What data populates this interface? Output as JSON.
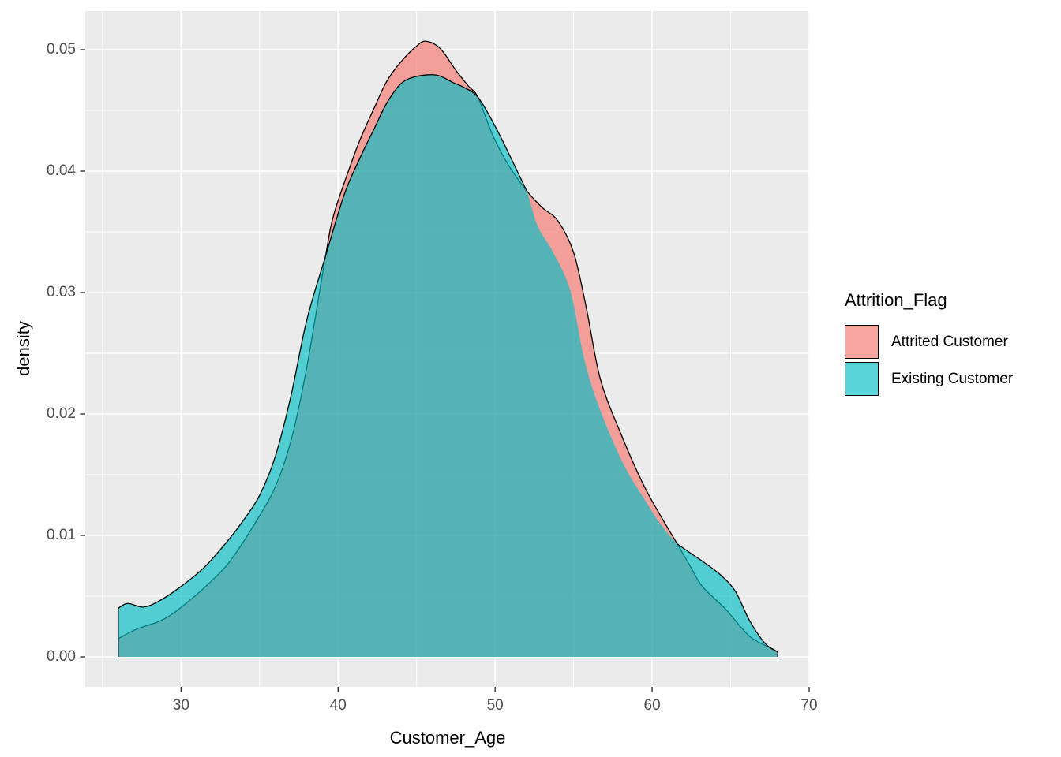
{
  "chart_data": {
    "type": "area",
    "subtype": "density",
    "title": "",
    "xlabel": "Customer_Age",
    "ylabel": "density",
    "xlim": [
      23.9,
      70.0
    ],
    "ylim": [
      -0.002468,
      0.053182
    ],
    "x_tick_values": [
      30,
      40,
      50,
      60,
      70
    ],
    "x_tick_labels": [
      "30",
      "40",
      "50",
      "60",
      "70"
    ],
    "x_minor_ticks": [
      25,
      35,
      45,
      55,
      65
    ],
    "y_tick_values": [
      0.0,
      0.01,
      0.02,
      0.03,
      0.04,
      0.05
    ],
    "y_tick_labels": [
      "0.00",
      "0.01",
      "0.02",
      "0.03",
      "0.04",
      "0.05"
    ],
    "y_minor_ticks": [
      0.005,
      0.015,
      0.025,
      0.035,
      0.045
    ],
    "grid": true,
    "panel_background": "#EBEBEB",
    "grid_color": "#FFFFFF",
    "tick_color": "#333333",
    "tick_text_color": "#4D4D4D",
    "outline_color": "#000000",
    "fill_alpha": 0.65,
    "legend": {
      "title": "Attrition_Flag",
      "position": "right",
      "entries": [
        {
          "label": "Attrited Customer",
          "color": "#F8766D"
        },
        {
          "label": "Existing Customer",
          "color": "#00BFC4"
        }
      ]
    },
    "series": [
      {
        "name": "Attrited Customer",
        "color": "#F8766D",
        "stroke_gap": null,
        "points": [
          [
            26.0,
            0.0015
          ],
          [
            27.2,
            0.0023
          ],
          [
            28.9,
            0.0031
          ],
          [
            30.6,
            0.0047
          ],
          [
            32.3,
            0.0067
          ],
          [
            33.3,
            0.0082
          ],
          [
            34.8,
            0.0112
          ],
          [
            36.0,
            0.014
          ],
          [
            37.0,
            0.0178
          ],
          [
            38.0,
            0.0238
          ],
          [
            39.2,
            0.033
          ],
          [
            39.7,
            0.0363
          ],
          [
            40.6,
            0.0398
          ],
          [
            41.4,
            0.0426
          ],
          [
            42.3,
            0.0452
          ],
          [
            43.1,
            0.0474
          ],
          [
            44.0,
            0.049
          ],
          [
            45.0,
            0.0503
          ],
          [
            45.6,
            0.0507
          ],
          [
            46.5,
            0.0501
          ],
          [
            47.5,
            0.0483
          ],
          [
            48.3,
            0.047
          ],
          [
            48.9,
            0.0461
          ],
          [
            49.8,
            0.0431
          ],
          [
            50.8,
            0.0406
          ],
          [
            52.0,
            0.0384
          ],
          [
            53.0,
            0.037
          ],
          [
            54.0,
            0.0359
          ],
          [
            55.0,
            0.0333
          ],
          [
            55.8,
            0.0288
          ],
          [
            56.7,
            0.0229
          ],
          [
            58.0,
            0.0184
          ],
          [
            59.4,
            0.0143
          ],
          [
            60.5,
            0.0117
          ],
          [
            61.6,
            0.0093
          ],
          [
            62.5,
            0.0073
          ],
          [
            63.2,
            0.0058
          ],
          [
            64.7,
            0.0039
          ],
          [
            66.2,
            0.0017
          ],
          [
            67.6,
            0.0007
          ],
          [
            68.0,
            0.0004
          ]
        ]
      },
      {
        "name": "Existing Customer",
        "color": "#00BFC4",
        "stroke_gap": [
          52.0,
          61.6
        ],
        "points": [
          [
            26.0,
            0.004
          ],
          [
            26.6,
            0.0044
          ],
          [
            27.6,
            0.0041
          ],
          [
            28.6,
            0.0046
          ],
          [
            30.0,
            0.0058
          ],
          [
            31.5,
            0.0074
          ],
          [
            33.0,
            0.0096
          ],
          [
            34.0,
            0.0113
          ],
          [
            35.0,
            0.0133
          ],
          [
            36.0,
            0.0165
          ],
          [
            37.0,
            0.0215
          ],
          [
            38.0,
            0.0277
          ],
          [
            39.2,
            0.033
          ],
          [
            40.4,
            0.0381
          ],
          [
            41.4,
            0.0411
          ],
          [
            42.3,
            0.0435
          ],
          [
            43.1,
            0.0456
          ],
          [
            44.0,
            0.0472
          ],
          [
            45.0,
            0.0478
          ],
          [
            46.3,
            0.0479
          ],
          [
            47.3,
            0.0473
          ],
          [
            48.0,
            0.0469
          ],
          [
            48.9,
            0.0461
          ],
          [
            50.0,
            0.0437
          ],
          [
            51.0,
            0.0411
          ],
          [
            52.0,
            0.0384
          ],
          [
            52.7,
            0.0355
          ],
          [
            53.7,
            0.0333
          ],
          [
            54.8,
            0.0301
          ],
          [
            55.7,
            0.0244
          ],
          [
            56.7,
            0.0203
          ],
          [
            58.2,
            0.0158
          ],
          [
            59.5,
            0.013
          ],
          [
            60.5,
            0.011
          ],
          [
            61.6,
            0.0093
          ],
          [
            62.6,
            0.0084
          ],
          [
            63.5,
            0.0076
          ],
          [
            64.4,
            0.0067
          ],
          [
            65.3,
            0.0054
          ],
          [
            66.2,
            0.003
          ],
          [
            67.2,
            0.0011
          ],
          [
            68.0,
            0.0004
          ]
        ]
      }
    ]
  }
}
